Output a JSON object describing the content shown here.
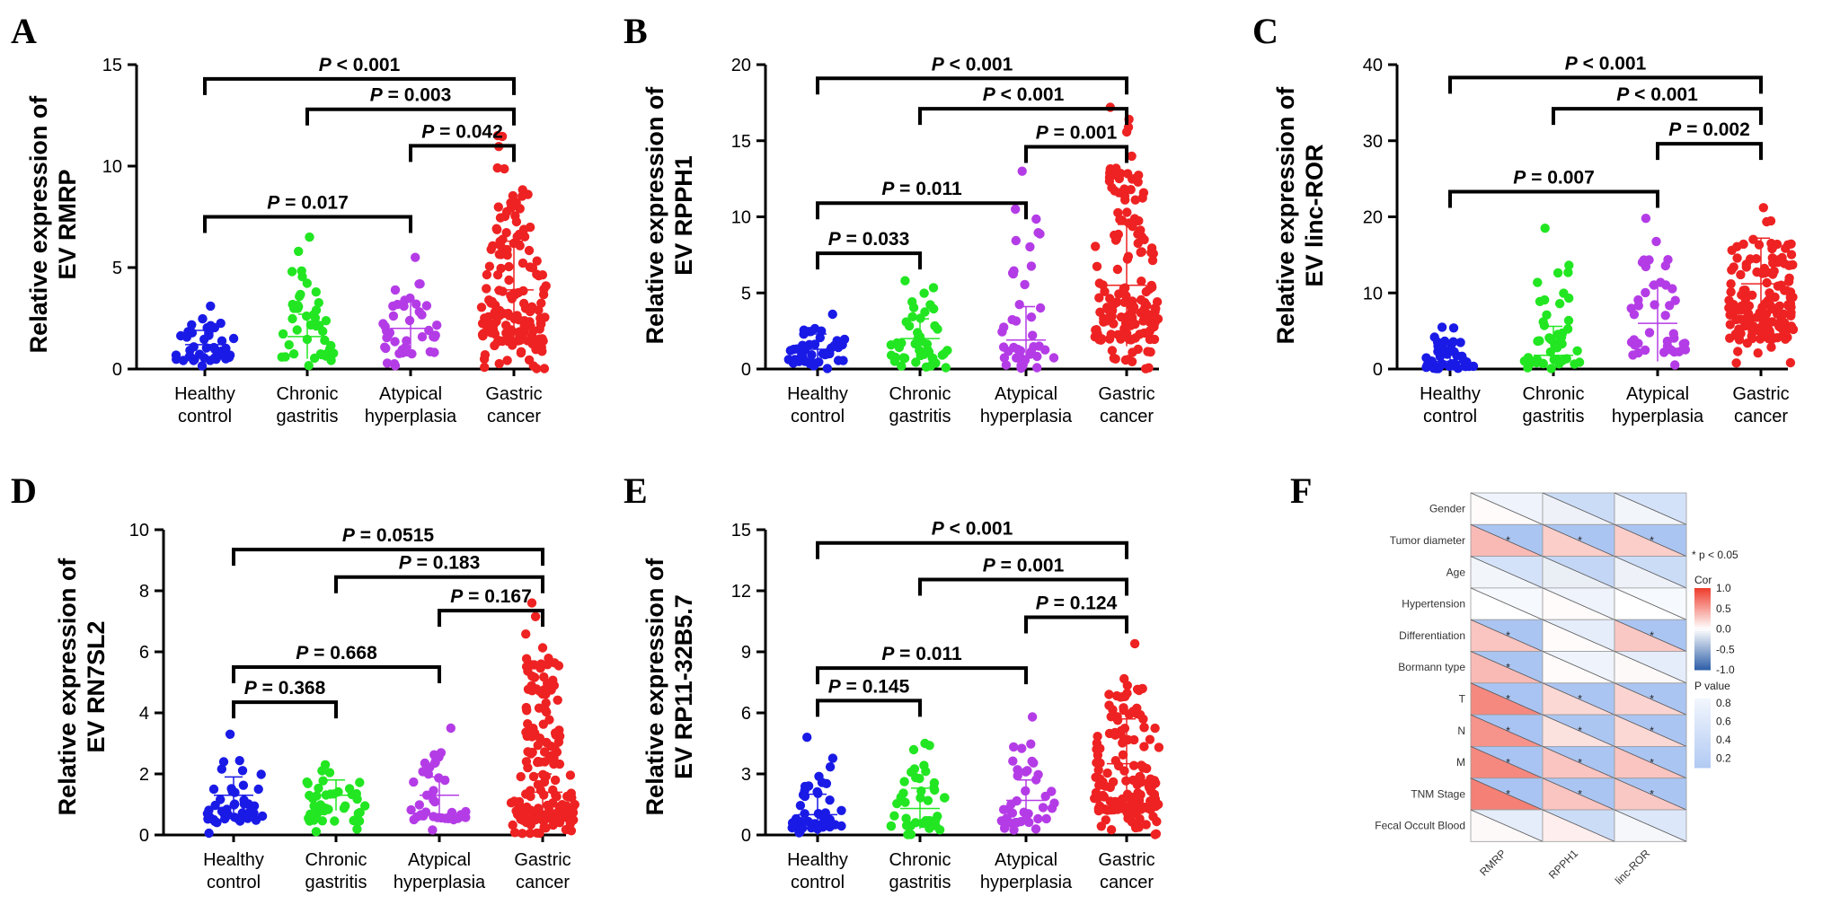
{
  "chart_data": [
    {
      "panel": "A",
      "type": "scatter",
      "ylabel_lines": [
        "Relative expression of",
        "EV RMRP"
      ],
      "ylim": [
        0,
        15
      ],
      "yticks": [
        "0",
        "5",
        "10",
        "15"
      ],
      "ytick_values": [
        0,
        5,
        10,
        15
      ],
      "categories": [
        [
          "Healthy",
          "control"
        ],
        [
          "Chronic",
          "gastritis"
        ],
        [
          "Atypical",
          "hyperplasia"
        ],
        [
          "Gastric",
          "cancer"
        ]
      ],
      "colors": [
        "#1a1ae6",
        "#22e622",
        "#b43ce6",
        "#ee2222"
      ],
      "groups": [
        {
          "n": 45,
          "mean": 1.2,
          "sd": 0.7,
          "max": 3.1
        },
        {
          "n": 45,
          "mean": 1.6,
          "sd": 1.1,
          "max": 6.5
        },
        {
          "n": 42,
          "mean": 2.0,
          "sd": 1.3,
          "max": 5.5
        },
        {
          "n": 160,
          "mean": 3.9,
          "sd": 2.4,
          "max": 11.5
        }
      ],
      "comparisons": [
        {
          "from": 0,
          "to": 3,
          "y": 14.3,
          "label": "P < 0.001"
        },
        {
          "from": 1,
          "to": 3,
          "y": 12.8,
          "label": "P = 0.003"
        },
        {
          "from": 2,
          "to": 3,
          "y": 11.0,
          "label": "P = 0.042"
        },
        {
          "from": 0,
          "to": 2,
          "y": 7.5,
          "label": "P = 0.017"
        }
      ]
    },
    {
      "panel": "B",
      "type": "scatter",
      "ylabel_lines": [
        "Relative expression of",
        "EV RPPH1"
      ],
      "ylim": [
        0,
        20
      ],
      "yticks": [
        "0",
        "5",
        "10",
        "15",
        "20"
      ],
      "ytick_values": [
        0,
        5,
        10,
        15,
        20
      ],
      "categories": [
        [
          "Healthy",
          "control"
        ],
        [
          "Chronic",
          "gastritis"
        ],
        [
          "Atypical",
          "hyperplasia"
        ],
        [
          "Gastric",
          "cancer"
        ]
      ],
      "colors": [
        "#1a1ae6",
        "#22e622",
        "#b43ce6",
        "#ee2222"
      ],
      "groups": [
        {
          "n": 45,
          "mean": 1.3,
          "sd": 1.0,
          "max": 3.6
        },
        {
          "n": 45,
          "mean": 2.0,
          "sd": 1.3,
          "max": 5.8
        },
        {
          "n": 42,
          "mean": 1.9,
          "sd": 2.2,
          "max": 13.0
        },
        {
          "n": 160,
          "mean": 5.5,
          "sd": 4.0,
          "max": 17.2
        }
      ],
      "comparisons": [
        {
          "from": 0,
          "to": 3,
          "y": 19.1,
          "label": "P < 0.001"
        },
        {
          "from": 1,
          "to": 3,
          "y": 17.1,
          "label": "P < 0.001"
        },
        {
          "from": 2,
          "to": 3,
          "y": 14.6,
          "label": "P = 0.001"
        },
        {
          "from": 0,
          "to": 2,
          "y": 10.9,
          "label": "P = 0.011"
        },
        {
          "from": 0,
          "to": 1,
          "y": 7.6,
          "label": "P = 0.033"
        }
      ]
    },
    {
      "panel": "C",
      "type": "scatter",
      "ylabel_lines": [
        "Relative expression of",
        "EV linc-ROR"
      ],
      "ylim": [
        0,
        40
      ],
      "yticks": [
        "0",
        "10",
        "20",
        "30",
        "40"
      ],
      "ytick_values": [
        0,
        10,
        20,
        30,
        40
      ],
      "categories": [
        [
          "Healthy",
          "control"
        ],
        [
          "Chronic",
          "gastritis"
        ],
        [
          "Atypical",
          "hyperplasia"
        ],
        [
          "Gastric",
          "cancer"
        ]
      ],
      "colors": [
        "#1a1ae6",
        "#22e622",
        "#b43ce6",
        "#ee2222"
      ],
      "groups": [
        {
          "n": 45,
          "mean": 1.0,
          "sd": 1.2,
          "max": 5.5
        },
        {
          "n": 45,
          "mean": 1.8,
          "sd": 3.8,
          "max": 18.5
        },
        {
          "n": 42,
          "mean": 6.0,
          "sd": 5.0,
          "max": 19.8
        },
        {
          "n": 160,
          "mean": 11.2,
          "sd": 6.0,
          "max": 21.2
        }
      ],
      "comparisons": [
        {
          "from": 0,
          "to": 3,
          "y": 38.3,
          "label": "P < 0.001"
        },
        {
          "from": 1,
          "to": 3,
          "y": 34.2,
          "label": "P < 0.001"
        },
        {
          "from": 2,
          "to": 3,
          "y": 29.6,
          "label": "P = 0.002"
        },
        {
          "from": 0,
          "to": 2,
          "y": 23.3,
          "label": "P = 0.007"
        }
      ]
    },
    {
      "panel": "D",
      "type": "scatter",
      "ylabel_lines": [
        "Relative expression of",
        "EV RN7SL2"
      ],
      "ylim": [
        0,
        10
      ],
      "yticks": [
        "0",
        "2",
        "4",
        "6",
        "8",
        "10"
      ],
      "ytick_values": [
        0,
        2,
        4,
        6,
        8,
        10
      ],
      "categories": [
        [
          "Healthy",
          "control"
        ],
        [
          "Chronic",
          "gastritis"
        ],
        [
          "Atypical",
          "hyperplasia"
        ],
        [
          "Gastric",
          "cancer"
        ]
      ],
      "colors": [
        "#1a1ae6",
        "#22e622",
        "#b43ce6",
        "#ee2222"
      ],
      "groups": [
        {
          "n": 45,
          "mean": 1.3,
          "sd": 0.6,
          "max": 3.3
        },
        {
          "n": 45,
          "mean": 1.3,
          "sd": 0.5,
          "max": 2.3
        },
        {
          "n": 42,
          "mean": 1.3,
          "sd": 0.6,
          "max": 3.5
        },
        {
          "n": 160,
          "mean": 1.4,
          "sd": 0.6,
          "max": 7.6
        }
      ],
      "comparisons": [
        {
          "from": 0,
          "to": 3,
          "y": 9.35,
          "label": "P = 0.0515"
        },
        {
          "from": 1,
          "to": 3,
          "y": 8.45,
          "label": "P = 0.183"
        },
        {
          "from": 2,
          "to": 3,
          "y": 7.35,
          "label": "P = 0.167"
        },
        {
          "from": 0,
          "to": 2,
          "y": 5.5,
          "label": "P = 0.668"
        },
        {
          "from": 0,
          "to": 1,
          "y": 4.35,
          "label": "P = 0.368"
        }
      ]
    },
    {
      "panel": "E",
      "type": "scatter",
      "ylabel_lines": [
        "Relative expression of",
        "EV RP11-32B5.7"
      ],
      "ylim": [
        0,
        15
      ],
      "yticks": [
        "0",
        "3",
        "6",
        "9",
        "12",
        "15"
      ],
      "ytick_values": [
        0,
        3,
        6,
        9,
        12,
        15
      ],
      "categories": [
        [
          "Healthy",
          "control"
        ],
        [
          "Chronic",
          "gastritis"
        ],
        [
          "Atypical",
          "hyperplasia"
        ],
        [
          "Gastric",
          "cancer"
        ]
      ],
      "colors": [
        "#1a1ae6",
        "#22e622",
        "#b43ce6",
        "#ee2222"
      ],
      "groups": [
        {
          "n": 45,
          "mean": 1.0,
          "sd": 1.0,
          "max": 4.8
        },
        {
          "n": 45,
          "mean": 1.3,
          "sd": 1.0,
          "max": 4.5
        },
        {
          "n": 42,
          "mean": 1.7,
          "sd": 1.0,
          "max": 5.8
        },
        {
          "n": 160,
          "mean": 3.5,
          "sd": 2.2,
          "max": 9.4
        }
      ],
      "comparisons": [
        {
          "from": 0,
          "to": 3,
          "y": 14.35,
          "label": "P < 0.001"
        },
        {
          "from": 1,
          "to": 3,
          "y": 12.55,
          "label": "P = 0.001"
        },
        {
          "from": 2,
          "to": 3,
          "y": 10.7,
          "label": "P = 0.124"
        },
        {
          "from": 0,
          "to": 2,
          "y": 8.2,
          "label": "P = 0.011"
        },
        {
          "from": 0,
          "to": 1,
          "y": 6.6,
          "label": "P = 0.145"
        }
      ]
    },
    {
      "panel": "F",
      "type": "heatmap",
      "rows": [
        "Gender",
        "Tumor diameter",
        "Age",
        "Hypertension",
        "Differentiation",
        "Bormann type",
        "T",
        "N",
        "M",
        "TNM Stage",
        "Fecal Occult Blood"
      ],
      "cols": [
        "RMRP",
        "RPPH1",
        "linc-ROR"
      ],
      "cor": [
        [
          0.02,
          -0.08,
          -0.06
        ],
        [
          0.35,
          0.25,
          0.25
        ],
        [
          -0.06,
          -0.1,
          -0.08
        ],
        [
          0.0,
          0.02,
          0.0
        ],
        [
          0.3,
          0.02,
          0.28
        ],
        [
          0.35,
          0.02,
          0.03
        ],
        [
          0.6,
          0.2,
          0.22
        ],
        [
          0.55,
          0.15,
          0.2
        ],
        [
          0.6,
          0.3,
          0.3
        ],
        [
          0.65,
          0.3,
          0.28
        ],
        [
          0.03,
          0.08,
          -0.05
        ]
      ],
      "pvalue": [
        [
          0.8,
          0.4,
          0.5
        ],
        [
          0.01,
          0.02,
          0.02
        ],
        [
          0.5,
          0.3,
          0.4
        ],
        [
          0.9,
          0.8,
          0.9
        ],
        [
          0.01,
          0.7,
          0.01
        ],
        [
          0.01,
          0.8,
          0.7
        ],
        [
          0.001,
          0.02,
          0.02
        ],
        [
          0.001,
          0.03,
          0.02
        ],
        [
          0.001,
          0.01,
          0.01
        ],
        [
          0.001,
          0.01,
          0.01
        ],
        [
          0.7,
          0.4,
          0.6
        ]
      ],
      "significant": [
        [
          false,
          false,
          false
        ],
        [
          true,
          true,
          true
        ],
        [
          false,
          false,
          false
        ],
        [
          false,
          false,
          false
        ],
        [
          true,
          false,
          true
        ],
        [
          true,
          false,
          false
        ],
        [
          true,
          true,
          true
        ],
        [
          true,
          true,
          true
        ],
        [
          true,
          true,
          true
        ],
        [
          true,
          true,
          true
        ],
        [
          false,
          false,
          false
        ]
      ],
      "sig_marker": "*",
      "sig_note": "* p < 0.05",
      "cor_legend": {
        "title": "Cor",
        "ticks": [
          "1.0",
          "0.5",
          "0.0",
          "-0.5",
          "-1.0"
        ],
        "tick_values": [
          1,
          0.5,
          0,
          -0.5,
          -1
        ]
      },
      "p_legend": {
        "title": "P value",
        "ticks": [
          "0.8",
          "0.6",
          "0.4",
          "0.2"
        ],
        "tick_values": [
          0.8,
          0.6,
          0.4,
          0.2
        ]
      },
      "colors": {
        "pos": "#ee3b2c",
        "neg": "#2e5fa8",
        "mid": "#ffffff",
        "p_low": "#a9c4f2",
        "p_high": "#ffffff"
      }
    }
  ]
}
